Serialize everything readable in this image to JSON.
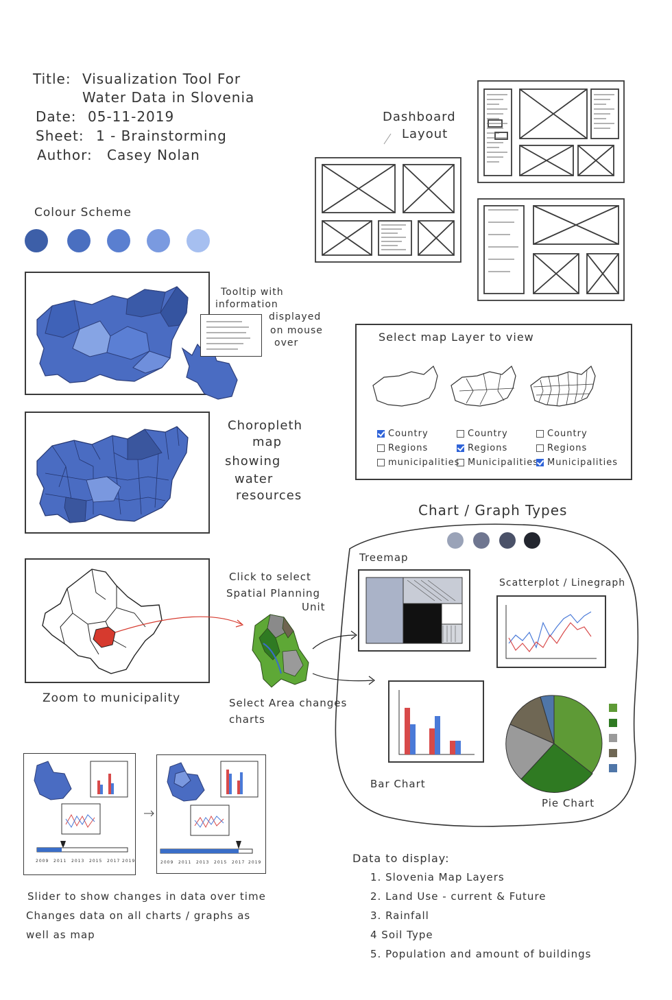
{
  "header": {
    "title_label": "Title:",
    "title_line1": "Visualization Tool For",
    "title_line2": "Water Data in Slovenia",
    "date_label": "Date:",
    "date_value": "05-11-2019",
    "sheet_label": "Sheet:",
    "sheet_value": "1 - Brainstorming",
    "author_label": "Author:",
    "author_value": "Casey Nolan"
  },
  "colour_scheme": {
    "label": "Colour Scheme",
    "swatches": [
      "#3d5fa8",
      "#4a6fc0",
      "#5a7fd0",
      "#7a9ae0",
      "#a6bff0"
    ]
  },
  "dashboard": {
    "label_line1": "Dashboard",
    "label_line2": "Layout"
  },
  "tooltip_note": {
    "l1": "Tooltip with",
    "l2": "information",
    "l3": "displayed",
    "l4": "on mouse",
    "l5": "over"
  },
  "choropleth_note": {
    "l1": "Choropleth",
    "l2": "map",
    "l3": "showing",
    "l4": "water",
    "l5": "resources"
  },
  "layer_selector": {
    "title": "Select map Layer to view",
    "columns": [
      {
        "options": [
          "Country",
          "Regions",
          "municipalities"
        ],
        "checked": 0
      },
      {
        "options": [
          "Country",
          "Regions",
          "Municipalities"
        ],
        "checked": 1
      },
      {
        "options": [
          "Country",
          "Regions",
          "Municipalities"
        ],
        "checked": 2
      }
    ]
  },
  "chart_types": {
    "title": "Chart / Graph Types",
    "pattern_colors": [
      "#9aa3b8",
      "#6f7690",
      "#4a5168",
      "#23262f"
    ],
    "treemap_label": "Treemap",
    "scatter_label": "Scatterplot / Linegraph",
    "bar_label": "Bar Chart",
    "pie_label": "Pie Chart",
    "pie_legend_colors": [
      "#5e9a36",
      "#2f7a22",
      "#9a9a9a",
      "#6f6754",
      "#4f76a8"
    ]
  },
  "zoom": {
    "click_l1": "Click to select",
    "click_l2": "Spatial Planning",
    "click_l3": "Unit",
    "zoom_label": "Zoom to municipality",
    "select_l1": "Select Area changes",
    "select_l2": "charts"
  },
  "slider": {
    "ticks": [
      "2009",
      "2011",
      "2013",
      "2015",
      "2017",
      "2019"
    ],
    "note_l1": "Slider to show changes in data over time",
    "note_l2": "Changes data on all charts / graphs as",
    "note_l3": "well as map"
  },
  "data_display": {
    "title": "Data to display:",
    "items": [
      "1. Slovenia Map Layers",
      "2. Land Use - current & Future",
      "3. Rainfall",
      "4 Soil Type",
      "5. Population and amount of buildings"
    ]
  }
}
